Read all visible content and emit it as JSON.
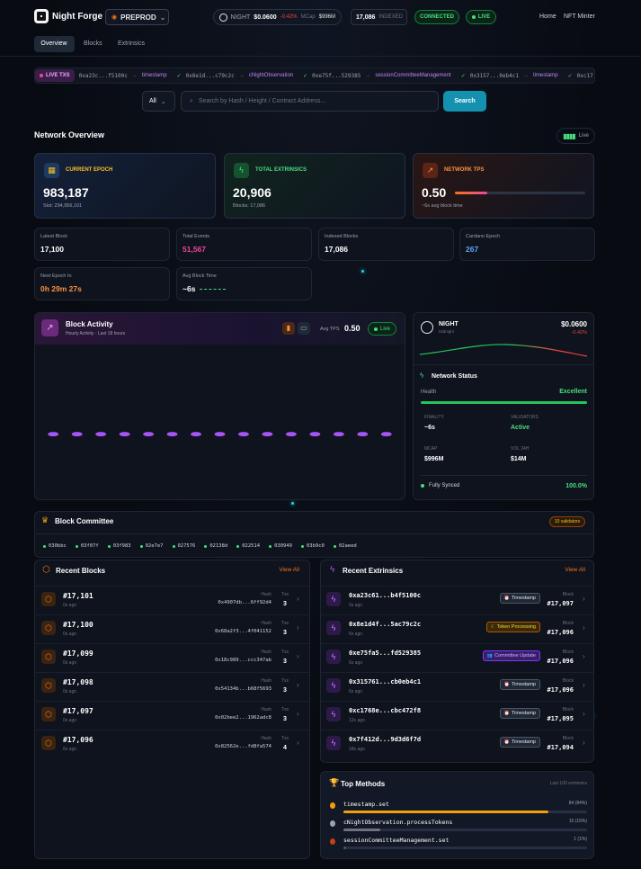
{
  "header": {
    "brand": "Night Forge",
    "network": "PREPROD",
    "ticker": {
      "symbol": "NIGHT",
      "price": "$0.0600",
      "change": "-0.42%",
      "mcap_label": "MCap",
      "mcap": "$996M"
    },
    "indexed": {
      "value": "17,086",
      "label": "INDEXED"
    },
    "status": "CONNECTED",
    "live": "LIVE",
    "nav": [
      "Home",
      "NFT Minter"
    ]
  },
  "tabs": [
    "Overview",
    "Blocks",
    "Extrinsics"
  ],
  "live_txs": {
    "label": "LIVE TXS",
    "items": [
      {
        "hash": "0xa23c...f5100c",
        "method": "timestamp"
      },
      {
        "hash": "0x8e1d...c79c2c",
        "method": "cNightObservation"
      },
      {
        "hash": "0xe75f...529385",
        "method": "sessionCommitteeManagement"
      },
      {
        "hash": "0x3157...0eb4c1",
        "method": "timestamp"
      },
      {
        "hash": "0xc17"
      }
    ]
  },
  "search": {
    "filter": "All",
    "placeholder": "Search by Hash / Height / Contract Address...",
    "button": "Search"
  },
  "overview": {
    "title": "Network Overview",
    "live": "Live",
    "cards": [
      {
        "label": "CURRENT EPOCH",
        "value": "983,187",
        "sub": "Slot: 294,956,101"
      },
      {
        "label": "TOTAL EXTRINSICS",
        "value": "20,906",
        "sub": "Blocks: 17,086"
      },
      {
        "label": "NETWORK TPS",
        "value": "0.50",
        "sub": "~6s avg block time"
      }
    ],
    "stats": [
      {
        "label": "Latest Block",
        "value": "17,100"
      },
      {
        "label": "Total Events",
        "value": "51,567"
      },
      {
        "label": "Indexed Blocks",
        "value": "17,086"
      },
      {
        "label": "Cardano Epoch",
        "value": "267"
      },
      {
        "label": "Next Epoch In",
        "value": "0h 29m 27s"
      },
      {
        "label": "Avg Block Time",
        "value": "~6s"
      }
    ]
  },
  "chart_data": {
    "type": "bar",
    "title": "Block Activity",
    "subtitle": "Hourly Activity · Last 18 hours",
    "avg_tps_label": "Avg TPS",
    "avg_tps": "0.50",
    "live": "Live",
    "categories": [
      null,
      null,
      null,
      null,
      null,
      null,
      null,
      null,
      null,
      null,
      null,
      null,
      null,
      null,
      null
    ],
    "values": [
      1,
      1,
      1,
      1,
      1,
      1,
      1,
      1,
      1,
      1,
      1,
      1,
      1,
      1,
      1
    ],
    "color": "#a855f7",
    "ylim": [
      0,
      20
    ]
  },
  "market": {
    "symbol": "NIGHT",
    "name": "Midnight",
    "price": "$0.0600",
    "change": "-0.42%",
    "status_title": "Network Status",
    "health_label": "Health",
    "health": "Excellent",
    "metrics": [
      {
        "label": "FINALITY",
        "value": "~6s"
      },
      {
        "label": "VALIDATORS",
        "value": "Active"
      },
      {
        "label": "MCAP",
        "value": "$996M"
      },
      {
        "label": "VOL 24H",
        "value": "$14M"
      }
    ],
    "sync_label": "Fully Synced",
    "sync": "100.0%"
  },
  "committee": {
    "title": "Block Committee",
    "count": "10 validators",
    "members": [
      "030bbc",
      "03f07f",
      "03f983",
      "02e7e7",
      "027576",
      "02138d",
      "022514",
      "030949",
      "03b9c0",
      "02aeed"
    ]
  },
  "recent_blocks": {
    "title": "Recent Blocks",
    "view_all": "View All",
    "hash_label": "Hash",
    "txs_label": "Txs",
    "rows": [
      {
        "number": "#17,101",
        "age": "0s ago",
        "hash": "0x4907db...6ff92d4",
        "txs": "3"
      },
      {
        "number": "#17,100",
        "age": "0s ago",
        "hash": "0x68a2f3...4f041152",
        "txs": "3"
      },
      {
        "number": "#17,099",
        "age": "0s ago",
        "hash": "0x18c989...ccc347ab",
        "txs": "3"
      },
      {
        "number": "#17,098",
        "age": "0s ago",
        "hash": "0x54134b...b68f5693",
        "txs": "3"
      },
      {
        "number": "#17,097",
        "age": "0s ago",
        "hash": "0x02bee2...1962adc8",
        "txs": "3"
      },
      {
        "number": "#17,096",
        "age": "6s ago",
        "hash": "0x82562e...fd8fa574",
        "txs": "4"
      }
    ]
  },
  "recent_extrinsics": {
    "title": "Recent Extrinsics",
    "view_all": "View All",
    "block_label": "Block",
    "rows": [
      {
        "hash": "0xa23c61...b4f5100c",
        "age": "0s ago",
        "tag": "Timestamp",
        "block": "#17,097"
      },
      {
        "hash": "0x8e1d4f...5ac79c2c",
        "age": "6s ago",
        "tag": "Token Processing",
        "block": "#17,096"
      },
      {
        "hash": "0xe75fa5...fd529385",
        "age": "6s ago",
        "tag": "Committee Update",
        "block": "#17,096"
      },
      {
        "hash": "0x315761...cb0eb4c1",
        "age": "6s ago",
        "tag": "Timestamp",
        "block": "#17,096"
      },
      {
        "hash": "0xc1768e...cbc472f8",
        "age": "12s ago",
        "tag": "Timestamp",
        "block": "#17,095"
      },
      {
        "hash": "0x7f412d...9d3d6f7d",
        "age": "18s ago",
        "tag": "Timestamp",
        "block": "#17,094"
      }
    ]
  },
  "top_methods": {
    "title": "Top Methods",
    "scope": "Last 100 extrinsics",
    "items": [
      {
        "method": "timestamp.set",
        "count": 84,
        "label": "84 (84%)"
      },
      {
        "method": "cNightObservation.processTokens",
        "count": 15,
        "label": "15 (15%)"
      },
      {
        "method": "sessionCommitteeManagement.set",
        "count": 1,
        "label": "1 (1%)"
      }
    ]
  }
}
